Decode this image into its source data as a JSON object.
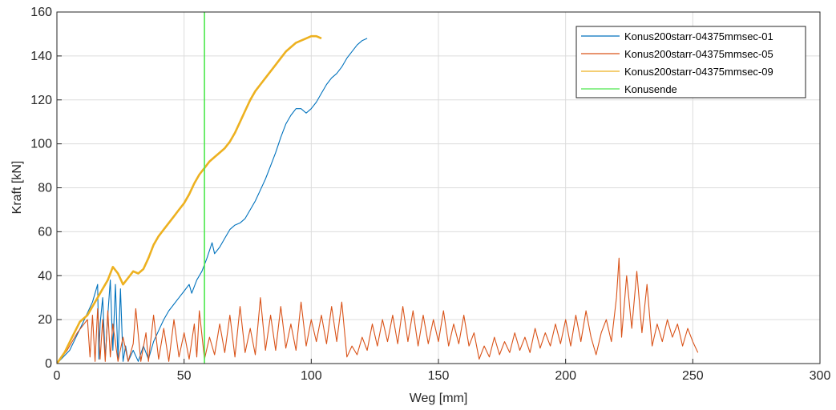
{
  "chart_data": {
    "type": "line",
    "title": "",
    "xlabel": "Weg [mm]",
    "ylabel": "Kraft [kN]",
    "xlim": [
      0,
      300
    ],
    "ylim": [
      0,
      160
    ],
    "x_ticks": [
      0,
      50,
      100,
      150,
      200,
      250,
      300
    ],
    "y_ticks": [
      0,
      20,
      40,
      60,
      80,
      100,
      120,
      140,
      160
    ],
    "grid": true,
    "legend_position": "top-right",
    "series": [
      {
        "name": "Konus200starr-04375mmsec-01",
        "color": "#0072BD",
        "points": [
          [
            0,
            0
          ],
          [
            5,
            6
          ],
          [
            10,
            18
          ],
          [
            14,
            28
          ],
          [
            16,
            36
          ],
          [
            16.5,
            2
          ],
          [
            17,
            18
          ],
          [
            18,
            30
          ],
          [
            19,
            2
          ],
          [
            20,
            22
          ],
          [
            21,
            38
          ],
          [
            22,
            6
          ],
          [
            23,
            36
          ],
          [
            24,
            2
          ],
          [
            25,
            34
          ],
          [
            26,
            1
          ],
          [
            27,
            8
          ],
          [
            28,
            1
          ],
          [
            30,
            6
          ],
          [
            32,
            1
          ],
          [
            34,
            8
          ],
          [
            36,
            2
          ],
          [
            38,
            10
          ],
          [
            40,
            15
          ],
          [
            42,
            20
          ],
          [
            44,
            24
          ],
          [
            46,
            27
          ],
          [
            48,
            30
          ],
          [
            50,
            33
          ],
          [
            52,
            36
          ],
          [
            53,
            32
          ],
          [
            55,
            38
          ],
          [
            57,
            42
          ],
          [
            59,
            48
          ],
          [
            61,
            55
          ],
          [
            62,
            50
          ],
          [
            64,
            53
          ],
          [
            66,
            57
          ],
          [
            68,
            61
          ],
          [
            70,
            63
          ],
          [
            72,
            64
          ],
          [
            74,
            66
          ],
          [
            76,
            70
          ],
          [
            78,
            74
          ],
          [
            80,
            79
          ],
          [
            82,
            84
          ],
          [
            84,
            90
          ],
          [
            86,
            96
          ],
          [
            88,
            103
          ],
          [
            90,
            109
          ],
          [
            92,
            113
          ],
          [
            94,
            116
          ],
          [
            96,
            116
          ],
          [
            98,
            114
          ],
          [
            100,
            116
          ],
          [
            102,
            119
          ],
          [
            104,
            123
          ],
          [
            106,
            127
          ],
          [
            108,
            130
          ],
          [
            110,
            132
          ],
          [
            112,
            135
          ],
          [
            114,
            139
          ],
          [
            116,
            142
          ],
          [
            118,
            145
          ],
          [
            120,
            147
          ],
          [
            122,
            148
          ]
        ]
      },
      {
        "name": "Konus200starr-04375mmsec-05",
        "color": "#D95319",
        "points": [
          [
            0,
            0
          ],
          [
            4,
            6
          ],
          [
            8,
            14
          ],
          [
            12,
            20
          ],
          [
            13,
            3
          ],
          [
            14,
            22
          ],
          [
            15,
            1
          ],
          [
            16,
            25
          ],
          [
            17,
            2
          ],
          [
            18,
            20
          ],
          [
            19,
            1
          ],
          [
            20,
            24
          ],
          [
            21,
            3
          ],
          [
            22,
            18
          ],
          [
            24,
            1
          ],
          [
            26,
            12
          ],
          [
            28,
            1
          ],
          [
            30,
            9
          ],
          [
            31,
            25
          ],
          [
            33,
            1
          ],
          [
            35,
            14
          ],
          [
            36,
            1
          ],
          [
            38,
            22
          ],
          [
            40,
            2
          ],
          [
            42,
            16
          ],
          [
            44,
            1
          ],
          [
            46,
            20
          ],
          [
            48,
            3
          ],
          [
            50,
            14
          ],
          [
            52,
            2
          ],
          [
            54,
            18
          ],
          [
            55,
            3
          ],
          [
            56,
            24
          ],
          [
            58,
            2
          ],
          [
            60,
            12
          ],
          [
            62,
            4
          ],
          [
            64,
            18
          ],
          [
            66,
            5
          ],
          [
            68,
            22
          ],
          [
            70,
            3
          ],
          [
            72,
            26
          ],
          [
            74,
            5
          ],
          [
            76,
            16
          ],
          [
            78,
            4
          ],
          [
            80,
            30
          ],
          [
            82,
            6
          ],
          [
            84,
            22
          ],
          [
            86,
            6
          ],
          [
            88,
            26
          ],
          [
            90,
            7
          ],
          [
            92,
            18
          ],
          [
            94,
            6
          ],
          [
            96,
            28
          ],
          [
            98,
            8
          ],
          [
            100,
            20
          ],
          [
            102,
            10
          ],
          [
            104,
            22
          ],
          [
            106,
            9
          ],
          [
            108,
            26
          ],
          [
            110,
            10
          ],
          [
            112,
            28
          ],
          [
            114,
            3
          ],
          [
            116,
            8
          ],
          [
            118,
            4
          ],
          [
            120,
            12
          ],
          [
            122,
            6
          ],
          [
            124,
            18
          ],
          [
            126,
            8
          ],
          [
            128,
            20
          ],
          [
            130,
            10
          ],
          [
            132,
            22
          ],
          [
            134,
            9
          ],
          [
            136,
            26
          ],
          [
            138,
            10
          ],
          [
            140,
            24
          ],
          [
            142,
            8
          ],
          [
            144,
            22
          ],
          [
            146,
            9
          ],
          [
            148,
            20
          ],
          [
            150,
            10
          ],
          [
            152,
            24
          ],
          [
            154,
            8
          ],
          [
            156,
            18
          ],
          [
            158,
            9
          ],
          [
            160,
            22
          ],
          [
            162,
            8
          ],
          [
            164,
            14
          ],
          [
            166,
            2
          ],
          [
            168,
            8
          ],
          [
            170,
            3
          ],
          [
            172,
            12
          ],
          [
            174,
            4
          ],
          [
            176,
            10
          ],
          [
            178,
            5
          ],
          [
            180,
            14
          ],
          [
            182,
            6
          ],
          [
            184,
            12
          ],
          [
            186,
            5
          ],
          [
            188,
            16
          ],
          [
            190,
            7
          ],
          [
            192,
            14
          ],
          [
            194,
            8
          ],
          [
            196,
            18
          ],
          [
            198,
            9
          ],
          [
            200,
            20
          ],
          [
            202,
            8
          ],
          [
            204,
            22
          ],
          [
            206,
            10
          ],
          [
            208,
            24
          ],
          [
            210,
            12
          ],
          [
            212,
            4
          ],
          [
            214,
            14
          ],
          [
            216,
            20
          ],
          [
            218,
            10
          ],
          [
            220,
            30
          ],
          [
            221,
            48
          ],
          [
            222,
            12
          ],
          [
            224,
            40
          ],
          [
            226,
            16
          ],
          [
            228,
            42
          ],
          [
            230,
            14
          ],
          [
            232,
            36
          ],
          [
            234,
            8
          ],
          [
            236,
            18
          ],
          [
            238,
            10
          ],
          [
            240,
            20
          ],
          [
            242,
            12
          ],
          [
            244,
            18
          ],
          [
            246,
            8
          ],
          [
            248,
            16
          ],
          [
            250,
            10
          ],
          [
            252,
            5
          ]
        ]
      },
      {
        "name": "Konus200starr-04375mmsec-09",
        "color": "#EDB120",
        "points": [
          [
            0,
            0
          ],
          [
            3,
            5
          ],
          [
            6,
            12
          ],
          [
            9,
            19
          ],
          [
            12,
            22
          ],
          [
            14,
            26
          ],
          [
            16,
            30
          ],
          [
            18,
            34
          ],
          [
            20,
            38
          ],
          [
            22,
            44
          ],
          [
            24,
            41
          ],
          [
            26,
            36
          ],
          [
            28,
            39
          ],
          [
            30,
            42
          ],
          [
            32,
            41
          ],
          [
            34,
            43
          ],
          [
            36,
            48
          ],
          [
            38,
            54
          ],
          [
            40,
            58
          ],
          [
            42,
            61
          ],
          [
            44,
            64
          ],
          [
            46,
            67
          ],
          [
            48,
            70
          ],
          [
            50,
            73
          ],
          [
            52,
            77
          ],
          [
            54,
            82
          ],
          [
            56,
            86
          ],
          [
            58,
            89
          ],
          [
            60,
            92
          ],
          [
            62,
            94
          ],
          [
            64,
            96
          ],
          [
            66,
            98
          ],
          [
            68,
            101
          ],
          [
            70,
            105
          ],
          [
            72,
            110
          ],
          [
            74,
            115
          ],
          [
            76,
            120
          ],
          [
            78,
            124
          ],
          [
            80,
            127
          ],
          [
            82,
            130
          ],
          [
            84,
            133
          ],
          [
            86,
            136
          ],
          [
            88,
            139
          ],
          [
            90,
            142
          ],
          [
            92,
            144
          ],
          [
            94,
            146
          ],
          [
            96,
            147
          ],
          [
            98,
            148
          ],
          [
            100,
            149
          ],
          [
            102,
            149
          ],
          [
            104,
            148
          ]
        ]
      },
      {
        "name": "Konusende",
        "color": "#4DE84D",
        "points": [
          [
            58,
            0
          ],
          [
            58,
            160
          ]
        ]
      }
    ]
  }
}
